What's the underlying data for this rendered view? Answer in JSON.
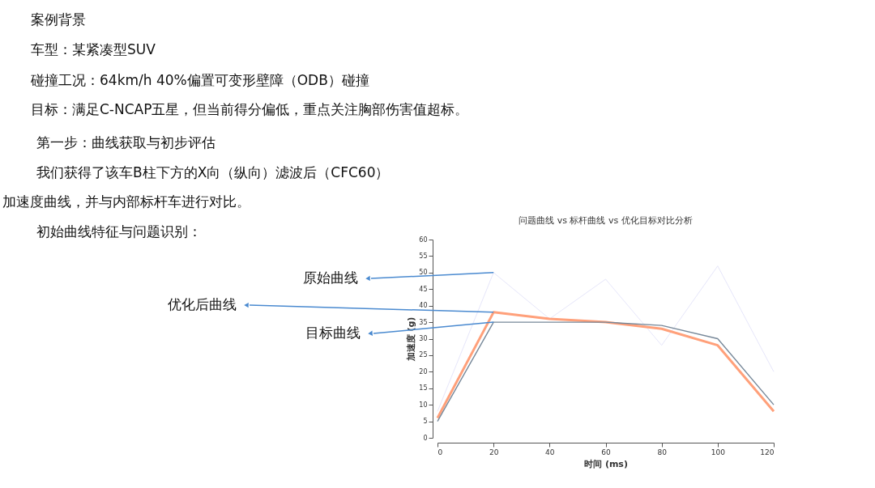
{
  "chart_data": {
    "type": "line",
    "title": "问题曲线 vs 标杆曲线 vs 优化目标对比分析",
    "xlabel": "时间 (ms)",
    "ylabel": "加速度 (g)",
    "x": [
      0,
      20,
      40,
      60,
      80,
      100,
      120
    ],
    "series": [
      {
        "name": "原始曲线",
        "color": "#e6e6fa",
        "values": [
          8,
          50,
          36,
          48,
          28,
          52,
          20
        ]
      },
      {
        "name": "优化后曲线",
        "color": "#ffa07a",
        "values": [
          6,
          38,
          36,
          35,
          33,
          28,
          8
        ]
      },
      {
        "name": "目标曲线",
        "color": "#778899",
        "values": [
          5,
          35,
          35,
          35,
          34,
          30,
          10
        ]
      }
    ],
    "xlim": [
      0,
      120
    ],
    "ylim": [
      0,
      60
    ],
    "xticks": [
      0,
      20,
      40,
      60,
      80,
      100,
      120
    ],
    "yticks": [
      0,
      5,
      10,
      15,
      20,
      25,
      30,
      35,
      40,
      45,
      50,
      55,
      60
    ],
    "grid": false,
    "marker": "none",
    "line_style": "solid",
    "annotations": [
      "案例背景",
      "车型：某紧凑型SUV",
      "碰撞工况：64km/h 40%偏置可变形壁障（ODB）碰撞",
      "目标：满足C-NCAP五星，但当前得分偏低，重点关注胸部伤害值超标。",
      "第一步：曲线获取与初步评估",
      "我们获得了该车B柱下方的X向（纵向）滤波后（CFC60）",
      "加速度曲线，并与内部标杆车进行对比。",
      "初始曲线特征与问题识别："
    ]
  }
}
